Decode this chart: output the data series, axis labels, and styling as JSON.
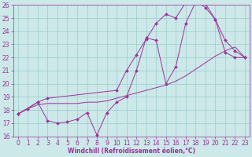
{
  "xlabel": "Windchill (Refroidissement éolien,°C)",
  "bg_color": "#cce8e8",
  "line_color": "#993399",
  "grid_color": "#99cccc",
  "xlim": [
    -0.5,
    23.5
  ],
  "ylim": [
    16,
    26
  ],
  "xticks": [
    0,
    1,
    2,
    3,
    4,
    5,
    6,
    7,
    8,
    9,
    10,
    11,
    12,
    13,
    14,
    15,
    16,
    17,
    18,
    19,
    20,
    21,
    22,
    23
  ],
  "yticks": [
    16,
    17,
    18,
    19,
    20,
    21,
    22,
    23,
    24,
    25,
    26
  ],
  "line1_x": [
    0,
    1,
    2,
    3,
    4,
    5,
    6,
    7,
    8,
    9,
    10,
    11,
    12,
    13,
    14,
    15,
    16,
    17,
    18,
    19,
    20,
    21,
    22,
    23
  ],
  "line1_y": [
    17.7,
    18.1,
    18.6,
    17.2,
    17.0,
    17.1,
    17.3,
    17.8,
    16.1,
    17.8,
    18.6,
    19.0,
    21.0,
    23.5,
    23.3,
    20.0,
    21.3,
    24.6,
    26.2,
    26.1,
    24.9,
    22.4,
    22.0,
    22.0
  ],
  "line2_x": [
    0,
    1,
    2,
    3,
    4,
    5,
    6,
    7,
    8,
    9,
    10,
    11,
    12,
    13,
    14,
    15,
    16,
    17,
    18,
    19,
    20,
    21,
    22,
    23
  ],
  "line2_y": [
    17.7,
    18.1,
    18.4,
    18.5,
    18.5,
    18.5,
    18.5,
    18.6,
    18.6,
    18.7,
    18.9,
    19.1,
    19.3,
    19.5,
    19.7,
    19.9,
    20.2,
    20.6,
    21.1,
    21.6,
    22.1,
    22.5,
    22.8,
    22.0
  ],
  "line3_x": [
    0,
    2,
    3,
    10,
    11,
    12,
    13,
    14,
    15,
    16,
    17,
    18,
    19,
    20,
    21,
    22,
    23
  ],
  "line3_y": [
    17.7,
    18.6,
    18.9,
    19.5,
    21.0,
    22.2,
    23.4,
    24.6,
    25.3,
    25.0,
    26.2,
    26.3,
    25.8,
    24.9,
    23.3,
    22.5,
    22.0
  ],
  "tick_fontsize": 5.5,
  "xlabel_fontsize": 5.5
}
